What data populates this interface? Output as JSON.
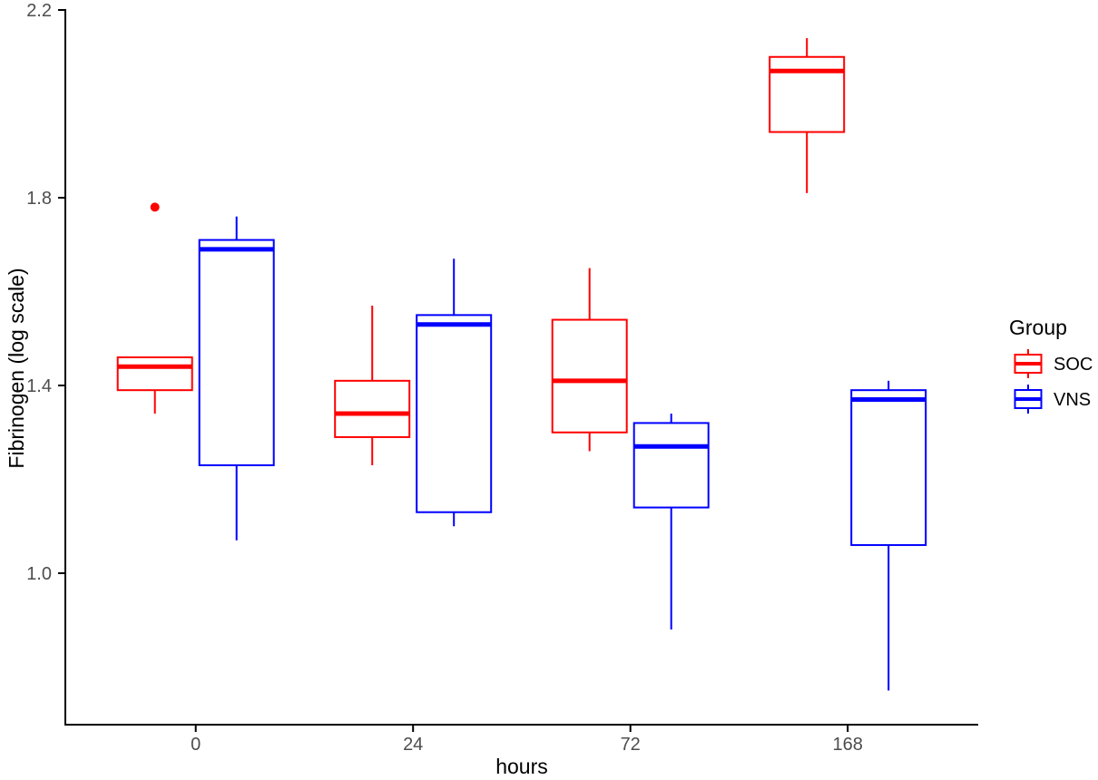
{
  "chart_data": {
    "type": "boxplot",
    "title": "",
    "xlabel": "hours",
    "ylabel": "Fibrinogen (log scale)",
    "categories": [
      "0",
      "24",
      "72",
      "168"
    ],
    "y_tick_labels": [
      "2.2",
      "1.8",
      "1.4",
      "1.0"
    ],
    "ylim": [
      0.68,
      2.21
    ],
    "grid": "off",
    "legend": {
      "title": "Group",
      "position": "right",
      "entries": [
        "SOC",
        "VNS"
      ]
    },
    "colors": {
      "SOC": "#ff0000",
      "VNS": "#0000ff",
      "axis": "#000000",
      "tick_text": "#4d4d4d",
      "box_fill": "#ffffff"
    },
    "series": [
      {
        "name": "SOC",
        "color": "#ff0000",
        "boxes": [
          {
            "category": "0",
            "whisker_low": 1.34,
            "q1": 1.39,
            "median": 1.44,
            "q3": 1.46,
            "whisker_high": 1.46,
            "outliers": [
              1.78
            ]
          },
          {
            "category": "24",
            "whisker_low": 1.23,
            "q1": 1.29,
            "median": 1.34,
            "q3": 1.41,
            "whisker_high": 1.57,
            "outliers": []
          },
          {
            "category": "72",
            "whisker_low": 1.26,
            "q1": 1.3,
            "median": 1.41,
            "q3": 1.54,
            "whisker_high": 1.65,
            "outliers": []
          },
          {
            "category": "168",
            "whisker_low": 1.81,
            "q1": 1.94,
            "median": 2.07,
            "q3": 2.1,
            "whisker_high": 2.14,
            "outliers": []
          }
        ]
      },
      {
        "name": "VNS",
        "color": "#0000ff",
        "boxes": [
          {
            "category": "0",
            "whisker_low": 1.07,
            "q1": 1.23,
            "median": 1.69,
            "q3": 1.71,
            "whisker_high": 1.76,
            "outliers": []
          },
          {
            "category": "24",
            "whisker_low": 1.1,
            "q1": 1.13,
            "median": 1.53,
            "q3": 1.55,
            "whisker_high": 1.67,
            "outliers": []
          },
          {
            "category": "72",
            "whisker_low": 0.88,
            "q1": 1.14,
            "median": 1.27,
            "q3": 1.32,
            "whisker_high": 1.34,
            "outliers": []
          },
          {
            "category": "168",
            "whisker_low": 0.75,
            "q1": 1.06,
            "median": 1.37,
            "q3": 1.39,
            "whisker_high": 1.41,
            "outliers": []
          }
        ]
      }
    ]
  }
}
